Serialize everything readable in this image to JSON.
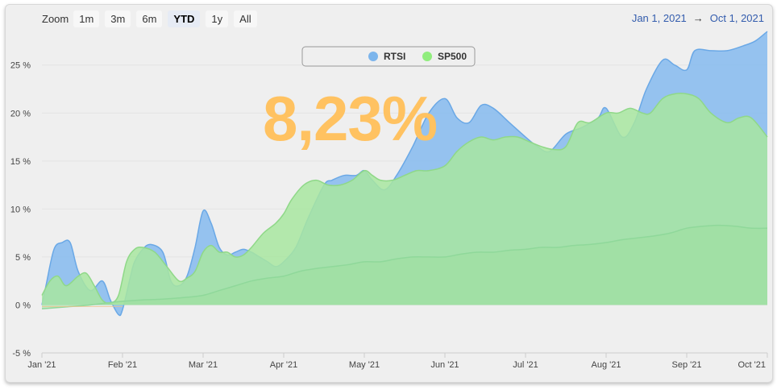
{
  "toolbar": {
    "zoom_label": "Zoom",
    "buttons": [
      "1m",
      "3m",
      "6m",
      "YTD",
      "1y",
      "All"
    ],
    "active": "YTD",
    "range_from": "Jan 1, 2021",
    "range_arrow": "→",
    "range_to": "Oct 1, 2021"
  },
  "headline_value": "8,23%",
  "colors": {
    "rtsi": "#8fbfee",
    "sp500": "#a8e6a0",
    "base": "#9fe0a0",
    "headline": "#ffc261"
  },
  "chart_data": {
    "type": "area",
    "x_ticks": [
      "Jan '21",
      "Feb '21",
      "Mar '21",
      "Apr '21",
      "May '21",
      "Jun '21",
      "Jul '21",
      "Aug '21",
      "Sep '21",
      "Oct '21"
    ],
    "y_ticks": [
      "-5 %",
      "0 %",
      "5 %",
      "10 %",
      "15 %",
      "20 %",
      "25 %"
    ],
    "ylim": [
      -5,
      28
    ],
    "legend": {
      "placement": "top-center",
      "items": [
        "RTSI",
        "SP500"
      ]
    },
    "series": [
      {
        "name": "RTSI",
        "x": [
          0,
          0.05,
          0.15,
          0.25,
          0.35,
          0.45,
          0.6,
          0.75,
          0.85,
          0.95,
          1.0,
          1.1,
          1.15,
          1.25,
          1.35,
          1.5,
          1.6,
          1.7,
          1.8,
          1.9,
          2.0,
          2.1,
          2.2,
          2.3,
          2.4,
          2.5,
          2.6,
          2.7,
          2.8,
          2.9,
          3.0,
          3.15,
          3.3,
          3.5,
          3.6,
          3.75,
          3.9,
          4.0,
          4.1,
          4.25,
          4.4,
          4.6,
          4.8,
          5.0,
          5.15,
          5.3,
          5.45,
          5.6,
          5.8,
          6.0,
          6.15,
          6.3,
          6.5,
          6.7,
          6.9,
          7.0,
          7.2,
          7.35,
          7.5,
          7.7,
          7.85,
          8.0,
          8.1,
          8.3,
          8.5,
          8.7,
          8.85,
          9.0
        ],
        "values": [
          0,
          2.0,
          5.8,
          6.5,
          6.5,
          3.5,
          1.5,
          2.5,
          0.5,
          -1.0,
          -0.5,
          3.0,
          4.5,
          5.8,
          6.3,
          5.5,
          2.5,
          2.0,
          3.0,
          6.0,
          9.8,
          8.5,
          6.0,
          5.2,
          5.5,
          5.8,
          5.5,
          5.0,
          4.5,
          4.0,
          4.5,
          6.0,
          9.0,
          12.5,
          13.0,
          13.5,
          13.5,
          14.0,
          13.0,
          12.0,
          13.5,
          16.5,
          20.0,
          21.5,
          19.5,
          19.0,
          20.8,
          20.5,
          19.0,
          17.5,
          16.5,
          16.0,
          17.8,
          18.5,
          19.5,
          20.5,
          17.5,
          19.0,
          22.5,
          25.5,
          25.0,
          24.5,
          26.5,
          26.5,
          26.5,
          27.0,
          27.5,
          28.5
        ]
      },
      {
        "name": "SP500",
        "x": [
          0,
          0.1,
          0.2,
          0.3,
          0.45,
          0.55,
          0.65,
          0.75,
          0.85,
          0.95,
          1.05,
          1.15,
          1.25,
          1.4,
          1.55,
          1.7,
          1.8,
          1.9,
          2.0,
          2.1,
          2.2,
          2.3,
          2.4,
          2.5,
          2.6,
          2.75,
          2.9,
          3.0,
          3.1,
          3.25,
          3.4,
          3.55,
          3.7,
          3.85,
          4.0,
          4.1,
          4.2,
          4.35,
          4.5,
          4.65,
          4.8,
          5.0,
          5.15,
          5.3,
          5.45,
          5.6,
          5.75,
          5.9,
          6.05,
          6.2,
          6.35,
          6.5,
          6.65,
          6.8,
          7.0,
          7.15,
          7.3,
          7.45,
          7.55,
          7.7,
          7.85,
          8.0,
          8.15,
          8.3,
          8.5,
          8.65,
          8.8,
          9.0
        ],
        "values": [
          1.0,
          2.5,
          3.0,
          2.0,
          3.0,
          3.3,
          2.0,
          0.5,
          0.2,
          1.0,
          4.5,
          5.8,
          6.0,
          5.5,
          4.0,
          2.5,
          2.8,
          3.5,
          5.5,
          6.2,
          5.5,
          5.5,
          5.0,
          5.2,
          6.0,
          7.5,
          8.5,
          9.5,
          11.0,
          12.5,
          13.0,
          12.5,
          12.5,
          13.0,
          14.0,
          13.5,
          13.0,
          13.0,
          13.5,
          14.0,
          14.0,
          14.5,
          16.0,
          17.0,
          17.5,
          17.2,
          17.5,
          17.5,
          17.0,
          16.5,
          16.2,
          16.5,
          19.0,
          19.0,
          20.0,
          20.0,
          20.5,
          20.0,
          20.0,
          21.5,
          22.0,
          22.0,
          21.5,
          20.0,
          19.0,
          19.5,
          19.5,
          17.5
        ]
      },
      {
        "name": "",
        "x": [
          0,
          0.3,
          0.6,
          0.9,
          1.2,
          1.5,
          1.8,
          2.0,
          2.2,
          2.4,
          2.6,
          2.8,
          3.0,
          3.2,
          3.4,
          3.6,
          3.8,
          4.0,
          4.2,
          4.4,
          4.6,
          4.8,
          5.0,
          5.2,
          5.4,
          5.6,
          5.8,
          6.0,
          6.2,
          6.4,
          6.6,
          6.8,
          7.0,
          7.2,
          7.4,
          7.6,
          7.8,
          8.0,
          8.2,
          8.4,
          8.6,
          8.8,
          9.0
        ],
        "values": [
          -0.4,
          -0.2,
          0,
          0.3,
          0.5,
          0.6,
          0.8,
          1.0,
          1.5,
          2.0,
          2.5,
          2.8,
          3.0,
          3.5,
          3.8,
          4.0,
          4.2,
          4.5,
          4.5,
          4.8,
          5.0,
          5.0,
          5.0,
          5.3,
          5.5,
          5.5,
          5.7,
          5.8,
          6.0,
          6.0,
          6.2,
          6.3,
          6.5,
          6.8,
          7.0,
          7.2,
          7.5,
          8.0,
          8.2,
          8.3,
          8.2,
          8.0,
          8.0
        ]
      }
    ]
  }
}
